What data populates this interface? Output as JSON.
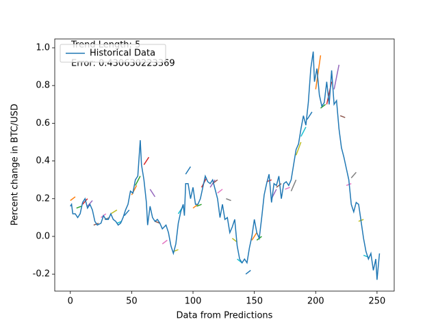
{
  "chart_data": {
    "type": "line",
    "xlabel": "Data from Predictions",
    "ylabel": "Percent change in BTC/USD",
    "annotations": [
      "Trend Length: 5",
      "Error: 0.430630223369"
    ],
    "legend": "upper left",
    "xlim": [
      -12.7,
      264
    ],
    "ylim": [
      -0.29,
      1.047
    ],
    "xticks": [
      0,
      50,
      100,
      150,
      200,
      250
    ],
    "yticks": [
      {
        "value": -0.2,
        "label": "-0.2"
      },
      {
        "value": 0,
        "label": "0.0"
      },
      {
        "value": 0.2,
        "label": "0.2"
      },
      {
        "value": 0.4,
        "label": "0.4"
      },
      {
        "value": 0.6,
        "label": "0.6"
      },
      {
        "value": 0.8,
        "label": "0.8"
      },
      {
        "value": 1.0,
        "label": "1.0"
      }
    ],
    "series": [
      {
        "name": "Historical Data",
        "color": "#1f77b4",
        "x": [
          0,
          1,
          2,
          4,
          6,
          8,
          10,
          12,
          14,
          16,
          18,
          20,
          22,
          25,
          27,
          29,
          31,
          33,
          35,
          37,
          39,
          41,
          43,
          45,
          47,
          49,
          51,
          53,
          55,
          57,
          58,
          60,
          62,
          63,
          65,
          67,
          69,
          71,
          73,
          75,
          78,
          80,
          82,
          84,
          86,
          88,
          90,
          92,
          93,
          94,
          96,
          98,
          100,
          102,
          104,
          106,
          108,
          110,
          112,
          114,
          116,
          118,
          120,
          122,
          124,
          126,
          128,
          130,
          132,
          134,
          136,
          138,
          140,
          142,
          144,
          146,
          148,
          150,
          152,
          154,
          156,
          158,
          160,
          162,
          164,
          166,
          168,
          170,
          172,
          174,
          176,
          178,
          180,
          182,
          184,
          186,
          188,
          190,
          192,
          194,
          196,
          198,
          199,
          201,
          203,
          205,
          207,
          209,
          211,
          213,
          215,
          217,
          219,
          221,
          223,
          225,
          227,
          229,
          231,
          233,
          235,
          237,
          239,
          241,
          243,
          245,
          247,
          249,
          250,
          252
        ],
        "values": [
          0.16,
          0.17,
          0.12,
          0.12,
          0.1,
          0.12,
          0.18,
          0.2,
          0.15,
          0.17,
          0.14,
          0.08,
          0.06,
          0.07,
          0.11,
          0.09,
          0.09,
          0.12,
          0.09,
          0.08,
          0.06,
          0.07,
          0.1,
          0.14,
          0.17,
          0.24,
          0.23,
          0.3,
          0.32,
          0.51,
          0.38,
          0.3,
          0.18,
          0.06,
          0.16,
          0.1,
          0.08,
          0.09,
          0.07,
          0.04,
          0.06,
          0.02,
          -0.05,
          -0.09,
          -0.04,
          0.07,
          0.13,
          0.17,
          0.11,
          0.28,
          0.28,
          0.2,
          0.26,
          0.17,
          0.17,
          0.2,
          0.26,
          0.32,
          0.29,
          0.28,
          0.3,
          0.25,
          0.2,
          0.1,
          0.17,
          0.09,
          0.1,
          0.02,
          0.05,
          0.09,
          -0.05,
          -0.12,
          -0.14,
          -0.12,
          -0.14,
          -0.06,
          0.0,
          0.09,
          0.02,
          -0.01,
          0.1,
          0.22,
          0.28,
          0.33,
          0.18,
          0.28,
          0.27,
          0.32,
          0.2,
          0.28,
          0.29,
          0.27,
          0.3,
          0.38,
          0.46,
          0.49,
          0.57,
          0.64,
          0.59,
          0.71,
          0.89,
          0.98,
          0.82,
          0.89,
          0.75,
          0.69,
          0.71,
          0.82,
          0.7,
          0.88,
          0.7,
          0.72,
          0.57,
          0.47,
          0.42,
          0.36,
          0.3,
          0.17,
          0.13,
          0.18,
          0.17,
          0.08,
          -0.01,
          -0.08,
          -0.12,
          -0.09,
          -0.18,
          -0.12,
          -0.23,
          -0.09
        ]
      }
    ],
    "predictions": [
      {
        "x": [
          0,
          4
        ],
        "values": [
          0.19,
          0.21
        ],
        "color": "#ff7f0e"
      },
      {
        "x": [
          5,
          9
        ],
        "values": [
          0.15,
          0.16
        ],
        "color": "#2ca02c"
      },
      {
        "x": [
          10,
          14
        ],
        "values": [
          0.17,
          0.2
        ],
        "color": "#d62728"
      },
      {
        "x": [
          14,
          18
        ],
        "values": [
          0.16,
          0.19
        ],
        "color": "#9467bd"
      },
      {
        "x": [
          19,
          23
        ],
        "values": [
          0.06,
          0.07
        ],
        "color": "#8c564b"
      },
      {
        "x": [
          25,
          29
        ],
        "values": [
          0.1,
          0.12
        ],
        "color": "#e377c2"
      },
      {
        "x": [
          28,
          32
        ],
        "values": [
          0.09,
          0.1
        ],
        "color": "#7f7f7f"
      },
      {
        "x": [
          33,
          38
        ],
        "values": [
          0.12,
          0.14
        ],
        "color": "#bcbd22"
      },
      {
        "x": [
          38,
          42
        ],
        "values": [
          0.07,
          0.08
        ],
        "color": "#17becf"
      },
      {
        "x": [
          44,
          48
        ],
        "values": [
          0.11,
          0.14
        ],
        "color": "#1f77b4"
      },
      {
        "x": [
          50,
          54
        ],
        "values": [
          0.22,
          0.27
        ],
        "color": "#ff7f0e"
      },
      {
        "x": [
          53,
          57
        ],
        "values": [
          0.27,
          0.32
        ],
        "color": "#2ca02c"
      },
      {
        "x": [
          60,
          64
        ],
        "values": [
          0.38,
          0.42
        ],
        "color": "#d62728"
      },
      {
        "x": [
          65,
          69
        ],
        "values": [
          0.25,
          0.21
        ],
        "color": "#9467bd"
      },
      {
        "x": [
          69,
          73
        ],
        "values": [
          0.08,
          0.07
        ],
        "color": "#8c564b"
      },
      {
        "x": [
          75,
          79
        ],
        "values": [
          -0.04,
          -0.02
        ],
        "color": "#e377c2"
      },
      {
        "x": [
          84,
          88
        ],
        "values": [
          -0.08,
          -0.07
        ],
        "color": "#bcbd22"
      },
      {
        "x": [
          88,
          92
        ],
        "values": [
          0.12,
          0.16
        ],
        "color": "#17becf"
      },
      {
        "x": [
          94,
          98
        ],
        "values": [
          0.33,
          0.37
        ],
        "color": "#1f77b4"
      },
      {
        "x": [
          100,
          104
        ],
        "values": [
          0.15,
          0.17
        ],
        "color": "#ff7f0e"
      },
      {
        "x": [
          103,
          107
        ],
        "values": [
          0.16,
          0.17
        ],
        "color": "#2ca02c"
      },
      {
        "x": [
          107,
          111
        ],
        "values": [
          0.26,
          0.31
        ],
        "color": "#d62728"
      },
      {
        "x": [
          114,
          118
        ],
        "values": [
          0.26,
          0.3
        ],
        "color": "#9467bd"
      },
      {
        "x": [
          116,
          120
        ],
        "values": [
          0.28,
          0.3
        ],
        "color": "#8c564b"
      },
      {
        "x": [
          120,
          124
        ],
        "values": [
          0.23,
          0.25
        ],
        "color": "#e377c2"
      },
      {
        "x": [
          127,
          131
        ],
        "values": [
          0.2,
          0.19
        ],
        "color": "#7f7f7f"
      },
      {
        "x": [
          132,
          136
        ],
        "values": [
          -0.01,
          -0.03
        ],
        "color": "#bcbd22"
      },
      {
        "x": [
          136,
          140
        ],
        "values": [
          -0.12,
          -0.14
        ],
        "color": "#17becf"
      },
      {
        "x": [
          143,
          147
        ],
        "values": [
          -0.2,
          -0.18
        ],
        "color": "#1f77b4"
      },
      {
        "x": [
          148,
          152
        ],
        "values": [
          -0.02,
          0.02
        ],
        "color": "#ff7f0e"
      },
      {
        "x": [
          152,
          156
        ],
        "values": [
          -0.02,
          0.0
        ],
        "color": "#2ca02c"
      },
      {
        "x": [
          160,
          164
        ],
        "values": [
          0.29,
          0.3
        ],
        "color": "#d62728"
      },
      {
        "x": [
          164,
          168
        ],
        "values": [
          0.2,
          0.25
        ],
        "color": "#9467bd"
      },
      {
        "x": [
          168,
          172
        ],
        "values": [
          0.26,
          0.28
        ],
        "color": "#8c564b"
      },
      {
        "x": [
          175,
          179
        ],
        "values": [
          0.25,
          0.26
        ],
        "color": "#e377c2"
      },
      {
        "x": [
          180,
          184
        ],
        "values": [
          0.24,
          0.3
        ],
        "color": "#7f7f7f"
      },
      {
        "x": [
          184,
          188
        ],
        "values": [
          0.43,
          0.5
        ],
        "color": "#bcbd22"
      },
      {
        "x": [
          188,
          192
        ],
        "values": [
          0.53,
          0.58
        ],
        "color": "#17becf"
      },
      {
        "x": [
          193,
          197
        ],
        "values": [
          0.62,
          0.66
        ],
        "color": "#1f77b4"
      },
      {
        "x": [
          200,
          204
        ],
        "values": [
          0.78,
          0.96
        ],
        "color": "#ff7f0e"
      },
      {
        "x": [
          204,
          208
        ],
        "values": [
          0.68,
          0.7
        ],
        "color": "#2ca02c"
      },
      {
        "x": [
          209,
          213
        ],
        "values": [
          0.7,
          0.82
        ],
        "color": "#d62728"
      },
      {
        "x": [
          215,
          219
        ],
        "values": [
          0.78,
          0.91
        ],
        "color": "#9467bd"
      },
      {
        "x": [
          220,
          224
        ],
        "values": [
          0.64,
          0.63
        ],
        "color": "#8c564b"
      },
      {
        "x": [
          225,
          229
        ],
        "values": [
          0.27,
          0.28
        ],
        "color": "#e377c2"
      },
      {
        "x": [
          229,
          233
        ],
        "values": [
          0.31,
          0.34
        ],
        "color": "#7f7f7f"
      },
      {
        "x": [
          235,
          239
        ],
        "values": [
          0.08,
          0.09
        ],
        "color": "#bcbd22"
      },
      {
        "x": [
          239,
          243
        ],
        "values": [
          -0.1,
          -0.11
        ],
        "color": "#17becf"
      }
    ]
  }
}
